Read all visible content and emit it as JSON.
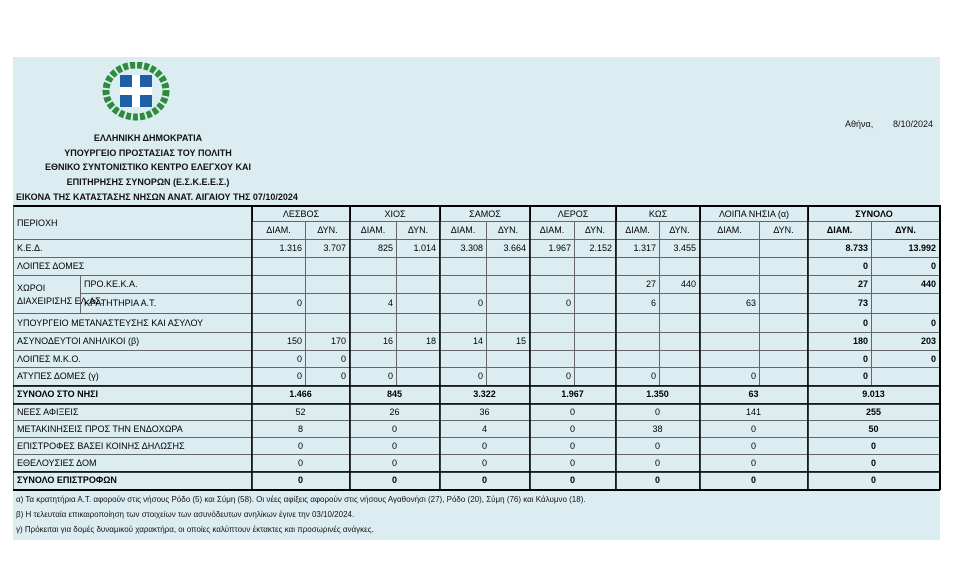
{
  "header": {
    "lines": [
      "ΕΛΛΗΝΙΚΗ ΔΗΜΟΚΡΑΤΙΑ",
      "ΥΠΟΥΡΓΕΙΟ ΠΡΟΣΤΑΣΙΑΣ ΤΟΥ ΠΟΛΙΤΗ",
      "ΕΘΝΙΚΟ ΣΥΝΤΟΝΙΣΤΙΚΟ ΚΕΝΤΡΟ ΕΛΕΓΧΟΥ ΚΑΙ",
      "ΕΠΙΤΗΡΗΣΗΣ ΣΥΝΟΡΩΝ (Ε.Σ.Κ.Ε.Ε.Σ.)"
    ],
    "place": "Αθήνα,",
    "date": "8/10/2024",
    "title": "ΕΙΚΟΝΑ ΤΗΣ ΚΑΤΑΣΤΑΣΗΣ ΝΗΣΩΝ ΑΝΑΤ. ΑΙΓΑΙΟΥ ΤΗΣ 07/10/2024"
  },
  "table": {
    "corner": "ΠΕΡΙΟΧΗ",
    "groups": [
      "ΛΕΣΒΟΣ",
      "ΧΙΟΣ",
      "ΣΑΜΟΣ",
      "ΛΕΡΟΣ",
      "ΚΩΣ",
      "ΛΟΙΠΑ ΝΗΣΙΑ (α)",
      "ΣΥΝΟΛΟ"
    ],
    "subheaders": [
      "ΔΙΑΜ.",
      "ΔΥΝ.",
      "ΔΙΑΜ.",
      "ΔΥΝ.",
      "ΔΙΑΜ.",
      "ΔΥΝ.",
      "ΔΙΑΜ.",
      "ΔΥΝ.",
      "ΔΙΑΜ.",
      "ΔΥΝ.",
      "ΔΙΑΜ.",
      "ΔΥΝ.",
      "ΔΙΑΜ.",
      "ΔΥΝ."
    ],
    "group_label": [
      "ΧΩΡΟΙ",
      "ΔΙΑΧΕΙΡΙΣΗΣ ΕΛ.ΑΣ."
    ],
    "rows": [
      {
        "label": "Κ.Ε.Δ.",
        "cells": [
          "1.316",
          "3.707",
          "825",
          "1.014",
          "3.308",
          "3.664",
          "1.967",
          "2.152",
          "1.317",
          "3.455",
          null,
          null,
          "8.733",
          "13.992"
        ]
      },
      {
        "label": "ΛΟΙΠΕΣ ΔΟΜΕΣ",
        "cells": [
          null,
          null,
          null,
          null,
          null,
          null,
          null,
          null,
          null,
          null,
          null,
          null,
          "0",
          "0"
        ]
      },
      {
        "sublabel": "ΠΡΟ.ΚΕ.Κ.Α.",
        "cells": [
          null,
          null,
          null,
          null,
          null,
          null,
          null,
          null,
          "27",
          "440",
          null,
          null,
          "27",
          "440"
        ]
      },
      {
        "sublabel": "ΚΡΑΤΗΤΗΡΙΑ Α.Τ.",
        "cells": [
          "0",
          null,
          "4",
          null,
          "0",
          null,
          "0",
          null,
          "6",
          null,
          "63",
          null,
          "73",
          null
        ]
      },
      {
        "label": "ΥΠΟΥΡΓΕΙΟ ΜΕΤΑΝΑΣΤΕΥΣΗΣ ΚΑΙ ΑΣΥΛΟΥ",
        "cells": [
          null,
          null,
          null,
          null,
          null,
          null,
          null,
          null,
          null,
          null,
          null,
          null,
          "0",
          "0"
        ]
      },
      {
        "label": "ΑΣΥΝΟΔΕΥΤΟΙ ΑΝΗΛΙΚΟΙ (β)",
        "cells": [
          "150",
          "170",
          "16",
          "18",
          "14",
          "15",
          null,
          null,
          null,
          null,
          null,
          null,
          "180",
          "203"
        ]
      },
      {
        "label": "ΛΟΙΠΕΣ Μ.Κ.Ο.",
        "cells": [
          "0",
          "0",
          null,
          null,
          null,
          null,
          null,
          null,
          null,
          null,
          null,
          null,
          "0",
          "0"
        ]
      },
      {
        "label": "ΑΤΥΠΕΣ ΔΟΜΕΣ (γ)",
        "cells": [
          "0",
          "0",
          "0",
          null,
          "0",
          null,
          "0",
          null,
          "0",
          null,
          "0",
          null,
          "0",
          null
        ]
      },
      {
        "label": "ΣΥΝΟΛΟ ΣΤΟ ΝΗΣΙ",
        "bold": true,
        "merged": [
          "1.466",
          "845",
          "3.322",
          "1.967",
          "1.350",
          "63",
          "9.013"
        ]
      },
      {
        "label": "ΝΕΕΣ ΑΦΙΞΕΙΣ",
        "merged": [
          "52",
          "26",
          "36",
          "0",
          "0",
          "141",
          "255"
        ]
      },
      {
        "label": "ΜΕΤΑΚΙΝΗΣΕΙΣ ΠΡΟΣ ΤΗΝ ΕΝΔΟΧΩΡΑ",
        "merged": [
          "8",
          "0",
          "4",
          "0",
          "38",
          "0",
          "50"
        ]
      },
      {
        "label": "ΕΠΙΣΤΡΟΦΕΣ ΒΑΣΕΙ ΚΟΙΝΗΣ ΔΗΛΩΣΗΣ",
        "merged": [
          "0",
          "0",
          "0",
          "0",
          "0",
          "0",
          "0"
        ]
      },
      {
        "label": "ΕΘΕΛΟΥΣΙΕΣ ΔΟΜ",
        "merged": [
          "0",
          "0",
          "0",
          "0",
          "0",
          "0",
          "0"
        ]
      },
      {
        "label": "ΣΥΝΟΛΟ ΕΠΙΣΤΡΟΦΩΝ",
        "bold": true,
        "merged": [
          "0",
          "0",
          "0",
          "0",
          "0",
          "0",
          "0"
        ]
      }
    ]
  },
  "notes": [
    "α) Τα κρατητήρια Α.Τ. αφορούν στις νήσους Ρόδο (5) και Σύμη (58). Οι νέες αφίξεις αφορούν στις νήσους Αγαθονήσι (27), Ρόδο (20), Σύμη (76) και Κάλυμνο (18).",
    "β) Η τελευταία επικαιροποίηση των στοιχείων των ασυνόδευτων ανηλίκων έγινε την 03/10/2024.",
    "γ) Πρόκειται για δομές δυναμικού χαρακτήρα, οι οποίες καλύπτουν έκτακτες και προσωρινές ανάγκες."
  ]
}
